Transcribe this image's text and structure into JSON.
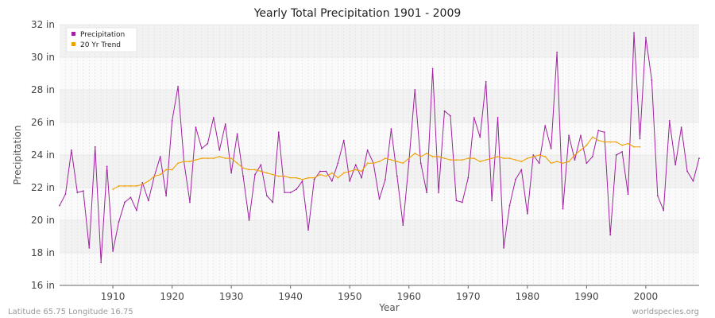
{
  "chart_data": {
    "type": "line",
    "title": "Yearly Total Precipitation 1901 - 2009",
    "xlabel": "Year",
    "ylabel": "Precipitation",
    "xlim": [
      1901,
      2009
    ],
    "ylim": [
      16,
      32
    ],
    "x_ticks": [
      1910,
      1920,
      1930,
      1940,
      1950,
      1960,
      1970,
      1980,
      1990,
      2000
    ],
    "y_ticks": [
      {
        "value": 16,
        "label": "16 in"
      },
      {
        "value": 18,
        "label": "18 in"
      },
      {
        "value": 20,
        "label": "20 in"
      },
      {
        "value": 22,
        "label": "22 in"
      },
      {
        "value": 24,
        "label": "24 in"
      },
      {
        "value": 26,
        "label": "26 in"
      },
      {
        "value": 28,
        "label": "28 in"
      },
      {
        "value": 30,
        "label": "30 in"
      },
      {
        "value": 32,
        "label": "32 in"
      }
    ],
    "legend_position": "top-left",
    "series": [
      {
        "name": "Precipitation",
        "color": "#a020a0",
        "x_start": 1901,
        "values": [
          20.9,
          21.6,
          24.3,
          21.7,
          21.8,
          18.3,
          24.5,
          17.4,
          23.3,
          18.1,
          19.9,
          21.1,
          21.4,
          20.6,
          22.3,
          21.2,
          22.7,
          23.9,
          21.5,
          26.1,
          28.2,
          23.6,
          21.1,
          25.7,
          24.4,
          24.7,
          26.3,
          24.3,
          25.9,
          22.9,
          25.3,
          22.7,
          20.0,
          22.8,
          23.4,
          21.5,
          21.1,
          25.4,
          21.7,
          21.7,
          21.9,
          22.4,
          19.4,
          22.5,
          23.0,
          23.0,
          22.4,
          23.5,
          24.9,
          22.4,
          23.4,
          22.6,
          24.3,
          23.5,
          21.3,
          22.5,
          25.6,
          22.7,
          19.7,
          23.6,
          28.0,
          23.5,
          21.7,
          29.3,
          21.7,
          26.7,
          26.4,
          21.2,
          21.1,
          22.6,
          26.3,
          25.1,
          28.5,
          21.2,
          26.3,
          18.3,
          20.9,
          22.5,
          23.1,
          20.4,
          24.0,
          23.5,
          25.8,
          24.4,
          30.3,
          20.7,
          25.2,
          23.7,
          25.2,
          23.5,
          23.9,
          25.5,
          25.4,
          19.1,
          24.0,
          24.2,
          21.6,
          31.5,
          25.0,
          31.2,
          28.6,
          21.5,
          20.6,
          26.1,
          23.4,
          25.7,
          23.0,
          22.4,
          23.8
        ]
      },
      {
        "name": "20 Yr Trend",
        "color": "#f0a000",
        "x_start": 1910,
        "values": [
          21.9,
          22.1,
          22.1,
          22.1,
          22.1,
          22.2,
          22.4,
          22.7,
          22.8,
          23.1,
          23.1,
          23.5,
          23.6,
          23.6,
          23.7,
          23.8,
          23.8,
          23.8,
          23.9,
          23.8,
          23.8,
          23.5,
          23.2,
          23.1,
          23.1,
          23.0,
          22.9,
          22.8,
          22.7,
          22.7,
          22.6,
          22.6,
          22.5,
          22.6,
          22.6,
          22.8,
          22.7,
          22.9,
          22.6,
          22.9,
          23.0,
          23.1,
          23.0,
          23.5,
          23.5,
          23.6,
          23.8,
          23.7,
          23.6,
          23.5,
          23.8,
          24.1,
          23.9,
          24.1,
          23.9,
          23.9,
          23.8,
          23.7,
          23.7,
          23.7,
          23.8,
          23.8,
          23.6,
          23.7,
          23.8,
          23.9,
          23.8,
          23.8,
          23.7,
          23.6,
          23.8,
          23.9,
          24.0,
          23.9,
          23.5,
          23.6,
          23.5,
          23.6,
          24.0,
          24.3,
          24.6,
          25.1,
          24.9,
          24.8,
          24.8,
          24.8,
          24.6,
          24.7,
          24.5,
          24.5
        ]
      }
    ]
  },
  "footer": {
    "location": "Latitude 65.75 Longitude 16.75",
    "source": "worldspecies.org"
  }
}
